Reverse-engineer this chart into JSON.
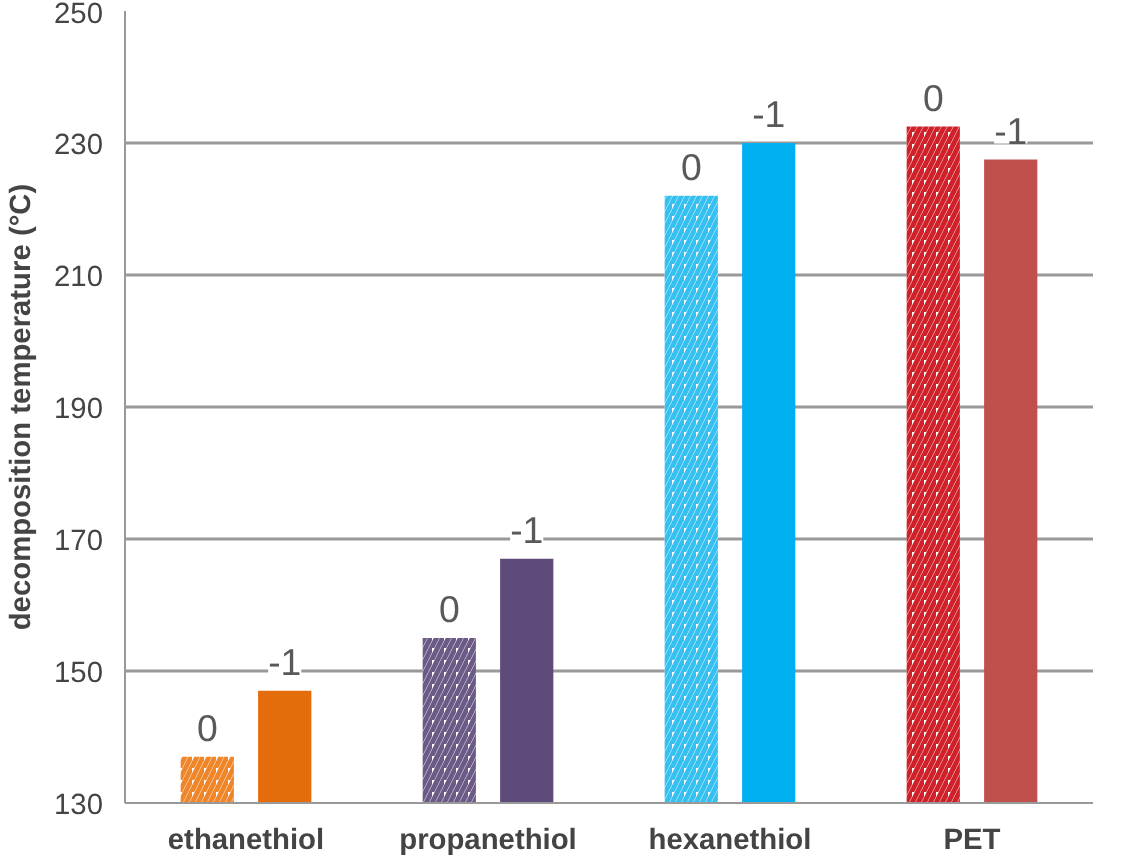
{
  "chart_data": {
    "type": "bar",
    "ylabel": "decomposition temperature (°C)",
    "categories": [
      "ethanethiol",
      "propanethiol",
      "hexanethiol",
      "PET"
    ],
    "series": [
      {
        "name": "0",
        "colors": [
          "#f0862a",
          "#6b5a85",
          "#35c0f0",
          "#d0202a"
        ],
        "values": [
          137,
          155,
          222,
          232.5
        ]
      },
      {
        "name": "-1",
        "colors": [
          "#e46c0a",
          "#5f4b7a",
          "#00b0f0",
          "#c0504d"
        ],
        "values": [
          147,
          167,
          230,
          227.5
        ]
      }
    ],
    "ylim": [
      130,
      250
    ],
    "yticks": [
      130,
      150,
      170,
      190,
      210,
      230,
      250
    ],
    "grid": "y"
  }
}
